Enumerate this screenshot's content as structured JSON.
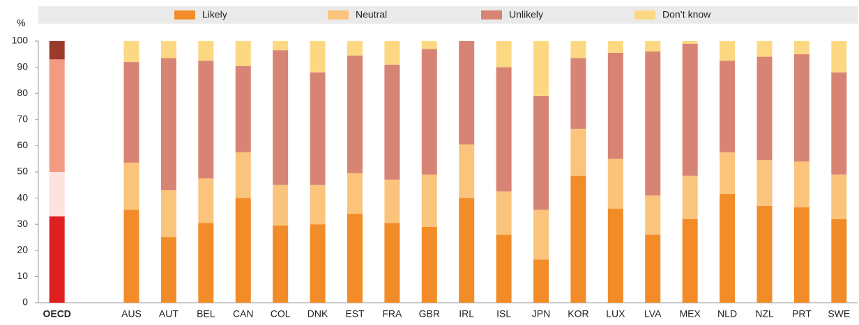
{
  "chart_data": {
    "type": "stacked_bar",
    "y_label": "%",
    "categories": [
      "OECD",
      null,
      "AUS",
      "AUT",
      "BEL",
      "CAN",
      "COL",
      "DNK",
      "EST",
      "FRA",
      "GBR",
      "IRL",
      "ISL",
      "JPN",
      "KOR",
      "LUX",
      "LVA",
      "MEX",
      "NLD",
      "NZL",
      "PRT",
      "SWE"
    ],
    "series": [
      {
        "name": "Likely",
        "color": "#f28c28",
        "values": [
          33,
          null,
          35.5,
          25,
          30.5,
          40,
          29.5,
          30,
          34,
          30.5,
          29,
          40,
          26,
          16.5,
          48.5,
          36,
          26,
          32,
          41.5,
          37,
          36.5,
          32
        ]
      },
      {
        "name": "Neutral",
        "color": "#fbc47c",
        "values": [
          17,
          null,
          18,
          18,
          17,
          17.5,
          15.5,
          15,
          15.5,
          16.5,
          20,
          20.5,
          16.5,
          19,
          18,
          19,
          15,
          16.5,
          16,
          17.5,
          17.5,
          17
        ]
      },
      {
        "name": "Unlikely",
        "color": "#d88474",
        "values": [
          43,
          null,
          38.5,
          50.5,
          45,
          33,
          51.5,
          43,
          45,
          44,
          48,
          39.5,
          47.5,
          43.5,
          27,
          40.5,
          55,
          50.5,
          35,
          39.5,
          41,
          39
        ]
      },
      {
        "name": "Don’t know",
        "color": "#fdd882",
        "values": [
          7,
          null,
          8,
          6.5,
          7.5,
          9.5,
          3.5,
          12,
          5.5,
          9,
          3,
          0,
          10,
          21,
          6.5,
          4.5,
          4,
          1,
          7.5,
          6,
          5,
          12
        ]
      }
    ],
    "highlight_index": 0,
    "highlight_colors": [
      "#e02020",
      "#fde2de",
      "#f39a82",
      "#9c3b2b"
    ],
    "ylim": [
      0,
      100
    ],
    "yticks": [
      0,
      10,
      20,
      30,
      40,
      50,
      60,
      70,
      80,
      90,
      100
    ],
    "grid": false,
    "legend": "top"
  }
}
